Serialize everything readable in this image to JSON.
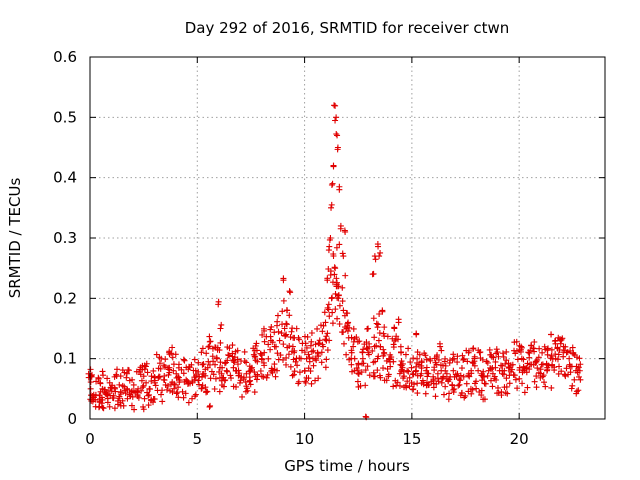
{
  "chart_data": {
    "type": "scatter",
    "title": "Day 292 of 2016, SRMTID for receiver ctwn",
    "xlabel": "GPS time / hours",
    "ylabel": "SRMTID / TECUs",
    "xlim": [
      0,
      24
    ],
    "ylim": [
      0,
      0.6
    ],
    "xticks": [
      0,
      5,
      10,
      15,
      20
    ],
    "yticks": [
      0,
      0.1,
      0.2,
      0.3,
      0.4,
      0.5,
      0.6
    ],
    "grid": true,
    "marker": "+",
    "series": [
      {
        "name": "SRMTID",
        "color": "#e00000",
        "x": [
          0.0,
          0.2,
          0.4,
          0.6,
          0.8,
          1.0,
          1.2,
          1.4,
          1.6,
          1.8,
          2.0,
          2.2,
          2.4,
          2.6,
          2.8,
          3.0,
          3.2,
          3.4,
          3.6,
          3.8,
          4.0,
          4.2,
          4.4,
          4.6,
          4.8,
          5.0,
          5.2,
          5.4,
          5.6,
          5.8,
          6.0,
          6.2,
          6.4,
          6.6,
          6.8,
          7.0,
          7.2,
          7.4,
          7.6,
          7.8,
          8.0,
          8.2,
          8.4,
          8.6,
          8.8,
          9.0,
          9.2,
          9.4,
          9.6,
          9.8,
          10.0,
          10.2,
          10.4,
          10.6,
          10.8,
          11.0,
          11.2,
          11.4,
          11.6,
          11.8,
          12.0,
          12.2,
          12.4,
          12.6,
          12.8,
          13.0,
          13.2,
          13.4,
          13.6,
          13.8,
          14.0,
          14.2,
          14.4,
          14.6,
          14.8,
          15.0,
          15.2,
          15.4,
          15.6,
          15.8,
          16.0,
          16.2,
          16.4,
          16.6,
          16.8,
          17.0,
          17.2,
          17.4,
          17.6,
          17.8,
          18.0,
          18.2,
          18.4,
          18.6,
          18.8,
          19.0,
          19.2,
          19.4,
          19.6,
          19.8,
          20.0,
          20.2,
          20.4,
          20.6,
          20.8,
          21.0,
          21.2,
          21.4,
          21.6,
          21.8,
          22.0,
          22.2,
          22.4,
          22.6,
          22.8,
          0.1,
          0.5,
          1.3,
          2.5,
          3.7,
          5.6,
          5.9,
          6.0,
          6.1,
          9.0,
          9.2,
          9.3,
          11.05,
          11.1,
          11.15,
          11.2,
          11.25,
          11.3,
          11.35,
          11.4,
          11.45,
          11.5,
          11.55,
          11.6,
          11.7,
          11.8,
          11.5,
          11.6,
          11.4,
          11.9,
          12.0,
          13.3,
          13.4,
          13.5,
          13.2,
          13.6,
          14.2,
          14.4,
          15.2,
          16.3,
          20.1,
          21.5,
          21.7,
          12.85
        ],
        "y": [
          0.05,
          0.04,
          0.045,
          0.05,
          0.04,
          0.035,
          0.05,
          0.045,
          0.055,
          0.05,
          0.045,
          0.05,
          0.055,
          0.06,
          0.05,
          0.06,
          0.07,
          0.065,
          0.085,
          0.08,
          0.075,
          0.07,
          0.065,
          0.06,
          0.065,
          0.08,
          0.09,
          0.085,
          0.095,
          0.09,
          0.085,
          0.075,
          0.08,
          0.085,
          0.08,
          0.07,
          0.075,
          0.08,
          0.085,
          0.095,
          0.1,
          0.11,
          0.115,
          0.12,
          0.13,
          0.15,
          0.14,
          0.12,
          0.11,
          0.1,
          0.1,
          0.095,
          0.1,
          0.11,
          0.12,
          0.13,
          0.2,
          0.22,
          0.22,
          0.18,
          0.15,
          0.12,
          0.1,
          0.09,
          0.1,
          0.11,
          0.12,
          0.13,
          0.115,
          0.11,
          0.1,
          0.095,
          0.09,
          0.085,
          0.08,
          0.085,
          0.08,
          0.075,
          0.08,
          0.075,
          0.07,
          0.075,
          0.08,
          0.075,
          0.07,
          0.08,
          0.075,
          0.07,
          0.075,
          0.08,
          0.08,
          0.075,
          0.07,
          0.08,
          0.085,
          0.08,
          0.075,
          0.08,
          0.085,
          0.09,
          0.085,
          0.08,
          0.085,
          0.09,
          0.095,
          0.09,
          0.08,
          0.085,
          0.09,
          0.1,
          0.12,
          0.11,
          0.09,
          0.08,
          0.065,
          0.07,
          0.06,
          0.03,
          0.02,
          0.11,
          0.02,
          0.1,
          0.19,
          0.15,
          0.23,
          0.18,
          0.21,
          0.23,
          0.19,
          0.28,
          0.3,
          0.35,
          0.39,
          0.42,
          0.52,
          0.5,
          0.47,
          0.45,
          0.38,
          0.32,
          0.27,
          0.22,
          0.2,
          0.25,
          0.31,
          0.16,
          0.27,
          0.29,
          0.27,
          0.24,
          0.18,
          0.15,
          0.16,
          0.14,
          0.12,
          0.12,
          0.14,
          0.13,
          0.0
        ]
      }
    ]
  }
}
